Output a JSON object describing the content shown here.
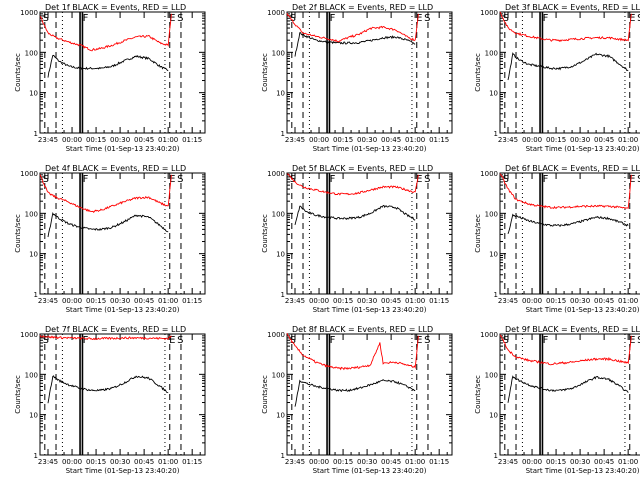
{
  "chart_data": {
    "type": "line",
    "y_scale": "log",
    "ylim": [
      1,
      1000
    ],
    "y_ticks": [
      "1",
      "10",
      "100",
      "1000"
    ],
    "ylabel": "Counts/sec",
    "xlabel": "Start Time (01-Sep-13 23:40:20)",
    "x_ticks": [
      "23:45",
      "00:00",
      "00:15",
      "00:30",
      "00:45",
      "01:00",
      "01:15"
    ],
    "x_tick_minutes": [
      5,
      20,
      35,
      50,
      65,
      80,
      95
    ],
    "xlim_minutes": [
      0,
      103
    ],
    "colors": {
      "events": "#000000",
      "lld": "#ff0000",
      "background": "#ffffff"
    },
    "legend_note": "BLACK = Events, RED = LLD",
    "panels": [
      {
        "title": "Det 1f BLACK = Events, RED = LLD",
        "markers": [
          "S",
          "F",
          "E",
          "S"
        ],
        "series": [
          {
            "name": "Events",
            "x": [
              5,
              8,
              12,
              18,
              25,
              32,
              38,
              45,
              52,
              60,
              68,
              75,
              80
            ],
            "values": [
              25,
              85,
              60,
              45,
              40,
              40,
              40,
              45,
              60,
              80,
              70,
              45,
              35
            ]
          },
          {
            "name": "LLD",
            "x": [
              0,
              5,
              10,
              18,
              25,
              32,
              38,
              45,
              52,
              60,
              68,
              75,
              80,
              82
            ],
            "values": [
              800,
              300,
              230,
              180,
              150,
              115,
              125,
              150,
              190,
              240,
              250,
              170,
              150,
              900
            ]
          }
        ]
      },
      {
        "title": "Det 2f BLACK = Events, RED = LLD",
        "markers": [
          "S",
          "F",
          "E",
          "S"
        ],
        "series": [
          {
            "name": "Events",
            "x": [
              5,
              8,
              12,
              18,
              25,
              32,
              38,
              45,
              52,
              60,
              68,
              75,
              80
            ],
            "values": [
              80,
              300,
              250,
              200,
              180,
              170,
              170,
              175,
              195,
              230,
              240,
              200,
              160
            ]
          },
          {
            "name": "LLD",
            "x": [
              0,
              5,
              10,
              18,
              25,
              32,
              38,
              45,
              52,
              60,
              68,
              75,
              80,
              82
            ],
            "values": [
              900,
              500,
              300,
              250,
              220,
              190,
              230,
              280,
              390,
              420,
              360,
              240,
              200,
              900
            ]
          }
        ]
      },
      {
        "title": "Det 3f BLACK = Events, RED = LLD",
        "markers": [
          "S",
          "F",
          "E",
          "S"
        ],
        "series": [
          {
            "name": "Events",
            "x": [
              5,
              8,
              12,
              18,
              25,
              32,
              38,
              45,
              52,
              60,
              68,
              75,
              80
            ],
            "values": [
              20,
              90,
              65,
              50,
              45,
              40,
              40,
              45,
              60,
              90,
              80,
              50,
              35
            ]
          },
          {
            "name": "LLD",
            "x": [
              0,
              5,
              10,
              18,
              25,
              32,
              38,
              45,
              52,
              60,
              68,
              75,
              80,
              82
            ],
            "values": [
              1000,
              400,
              300,
              250,
              220,
              200,
              200,
              210,
              220,
              230,
              230,
              210,
              200,
              900
            ]
          }
        ]
      },
      {
        "title": "Det 4f BLACK = Events, RED = LLD",
        "markers": [
          "S",
          "F",
          "E",
          "S"
        ],
        "series": [
          {
            "name": "Events",
            "x": [
              5,
              8,
              12,
              18,
              25,
              32,
              38,
              45,
              52,
              60,
              68,
              75,
              80
            ],
            "values": [
              25,
              100,
              75,
              55,
              45,
              40,
              40,
              45,
              60,
              90,
              80,
              50,
              35
            ]
          },
          {
            "name": "LLD",
            "x": [
              0,
              5,
              10,
              18,
              25,
              32,
              38,
              45,
              52,
              60,
              68,
              75,
              80,
              82
            ],
            "values": [
              900,
              320,
              250,
              190,
              140,
              110,
              120,
              150,
              190,
              240,
              250,
              180,
              150,
              900
            ]
          }
        ]
      },
      {
        "title": "Det 5f BLACK = Events, RED = LLD",
        "markers": [
          "S",
          "F",
          "E",
          "S"
        ],
        "series": [
          {
            "name": "Events",
            "x": [
              5,
              8,
              12,
              18,
              25,
              32,
              38,
              45,
              52,
              60,
              68,
              75,
              80
            ],
            "values": [
              50,
              150,
              110,
              90,
              80,
              75,
              75,
              80,
              100,
              150,
              140,
              90,
              70
            ]
          },
          {
            "name": "LLD",
            "x": [
              0,
              5,
              10,
              18,
              25,
              32,
              38,
              45,
              52,
              60,
              68,
              75,
              80,
              82
            ],
            "values": [
              1000,
              600,
              450,
              380,
              330,
              300,
              300,
              320,
              380,
              450,
              450,
              380,
              330,
              900
            ]
          }
        ]
      },
      {
        "title": "Det 6f BLACK = Events, RED = LLD",
        "markers": [
          "S",
          "F",
          "E",
          "S"
        ],
        "series": [
          {
            "name": "Events",
            "x": [
              5,
              8,
              12,
              18,
              25,
              32,
              38,
              45,
              52,
              60,
              68,
              75,
              80
            ],
            "values": [
              30,
              90,
              80,
              65,
              55,
              50,
              50,
              55,
              65,
              80,
              75,
              60,
              50
            ]
          },
          {
            "name": "LLD",
            "x": [
              0,
              5,
              10,
              18,
              25,
              32,
              38,
              45,
              52,
              60,
              68,
              75,
              80,
              82
            ],
            "values": [
              1000,
              400,
              220,
              170,
              150,
              140,
              140,
              145,
              150,
              150,
              150,
              140,
              130,
              900
            ]
          }
        ]
      },
      {
        "title": "Det 7f BLACK = Events, RED = LLD",
        "markers": [
          "S",
          "F",
          "E",
          "S"
        ],
        "series": [
          {
            "name": "Events",
            "x": [
              5,
              8,
              12,
              18,
              25,
              32,
              38,
              45,
              52,
              60,
              68,
              75,
              80
            ],
            "values": [
              20,
              90,
              70,
              55,
              45,
              40,
              40,
              45,
              60,
              90,
              80,
              50,
              35
            ]
          },
          {
            "name": "LLD",
            "x": [
              0,
              5,
              10,
              18,
              25,
              32,
              38,
              45,
              52,
              60,
              68,
              75,
              80,
              82
            ],
            "values": [
              900,
              850,
              820,
              800,
              780,
              760,
              770,
              780,
              800,
              800,
              790,
              780,
              770,
              900
            ]
          }
        ]
      },
      {
        "title": "Det 8f BLACK = Events, RED = LLD",
        "markers": [
          "S",
          "F",
          "E",
          "S"
        ],
        "series": [
          {
            "name": "Events",
            "x": [
              5,
              8,
              12,
              18,
              25,
              32,
              38,
              45,
              52,
              60,
              68,
              75,
              80
            ],
            "values": [
              15,
              70,
              60,
              50,
              45,
              40,
              40,
              45,
              55,
              70,
              65,
              50,
              40
            ]
          },
          {
            "name": "LLD",
            "x": [
              0,
              5,
              10,
              18,
              25,
              32,
              38,
              45,
              52,
              58,
              60,
              68,
              75,
              80,
              82
            ],
            "values": [
              1000,
              500,
              300,
              200,
              160,
              140,
              140,
              150,
              170,
              600,
              190,
              200,
              170,
              150,
              900
            ]
          }
        ]
      },
      {
        "title": "Det 9f BLACK = Events, RED = LLD",
        "markers": [
          "S",
          "F",
          "E",
          "S"
        ],
        "series": [
          {
            "name": "Events",
            "x": [
              5,
              8,
              12,
              18,
              25,
              32,
              38,
              45,
              52,
              60,
              68,
              75,
              80
            ],
            "values": [
              20,
              90,
              70,
              55,
              45,
              40,
              40,
              45,
              60,
              85,
              75,
              50,
              35
            ]
          },
          {
            "name": "LLD",
            "x": [
              0,
              5,
              10,
              18,
              25,
              32,
              38,
              45,
              52,
              60,
              68,
              75,
              80,
              82
            ],
            "values": [
              1000,
              400,
              270,
              220,
              200,
              180,
              190,
              200,
              220,
              240,
              240,
              210,
              190,
              900
            ]
          }
        ]
      }
    ]
  }
}
